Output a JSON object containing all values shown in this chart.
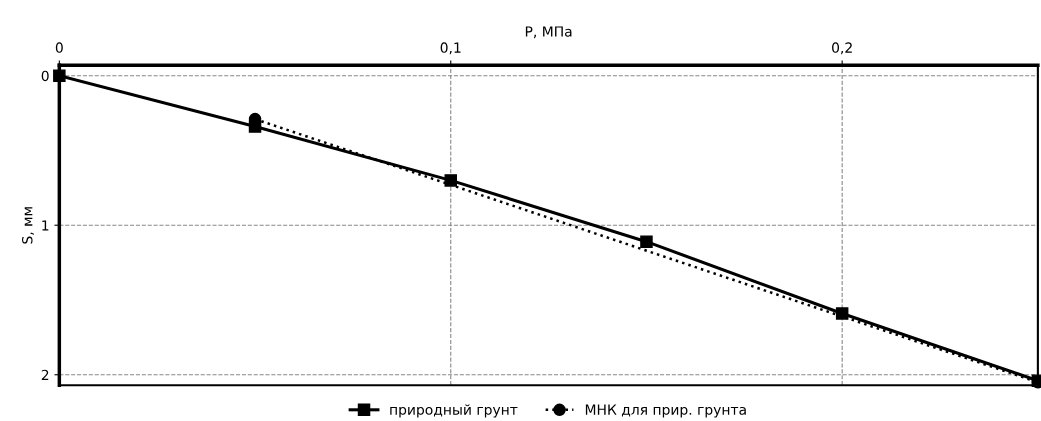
{
  "chart_data": {
    "type": "line",
    "xlabel": "P, МПа",
    "ylabel": "S, мм",
    "xlim": [
      0,
      0.25
    ],
    "xticks": [
      {
        "value": 0,
        "label": "0"
      },
      {
        "value": 0.1,
        "label": "0,1"
      },
      {
        "value": 0.2,
        "label": "0,2"
      }
    ],
    "ylim": [
      2.07,
      -0.07
    ],
    "yticks": [
      0,
      1,
      2
    ],
    "grid": true,
    "legend": "bottom",
    "series": [
      {
        "name": "природный грунт",
        "color": "#000000",
        "x": [
          0,
          0.05,
          0.1,
          0.15,
          0.2,
          0.25
        ],
        "values": [
          0,
          0.34,
          0.7,
          1.11,
          1.59,
          2.04
        ],
        "marker": "square",
        "line_style": "solid"
      },
      {
        "name": "МНК для прир. грунта",
        "color": "#000000",
        "x": [
          0.05,
          0.25
        ],
        "values": [
          0.29,
          2.05
        ],
        "marker": "circle",
        "line_style": "dotted"
      }
    ]
  }
}
